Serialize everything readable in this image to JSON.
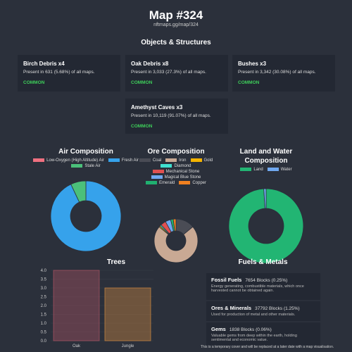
{
  "header": {
    "title": "Map #324",
    "subtitle": "nftmaps.gg/map/324"
  },
  "objects": {
    "title": "Objects & Structures",
    "items": [
      {
        "name": "Birch Debris x4",
        "presence": "Present in 631 (5.68%) of all maps.",
        "rarity": "COMMON"
      },
      {
        "name": "Oak Debris x8",
        "presence": "Present in 3,033 (27.3%) of all maps.",
        "rarity": "COMMON"
      },
      {
        "name": "Bushes x3",
        "presence": "Present in 3,342 (30.08%) of all maps.",
        "rarity": "COMMON"
      },
      {
        "name": "Amethyst Caves x3",
        "presence": "Present in 10,119 (91.07%) of all maps.",
        "rarity": "COMMON"
      }
    ]
  },
  "chart_data": [
    {
      "type": "donut",
      "title": "Air Composition",
      "categories": [
        "Low-Oxygen (High Altitude) Air",
        "Fresh Air",
        "Stale Air"
      ],
      "values": [
        0,
        93,
        7
      ],
      "colors": [
        "#f07080",
        "#36a2eb",
        "#4bc07a"
      ]
    },
    {
      "type": "donut",
      "title": "Ore Composition",
      "categories": [
        "Coal",
        "Iron",
        "Gold",
        "Diamond",
        "Mechanical Stone",
        "Magical Blue Stone",
        "Emerald",
        "Copper"
      ],
      "values": [
        14,
        72,
        1,
        1,
        4,
        4,
        2,
        2
      ],
      "colors": [
        "#4a4c55",
        "#c9a994",
        "#f5b400",
        "#40e0d0",
        "#e05050",
        "#70a8f0",
        "#20b070",
        "#f08020"
      ]
    },
    {
      "type": "donut",
      "title": "Land and Water Composition",
      "categories": [
        "Land",
        "Water"
      ],
      "values": [
        99,
        1
      ],
      "colors": [
        "#22b573",
        "#70a8f0"
      ]
    },
    {
      "type": "bar",
      "title": "Trees",
      "categories": [
        "Oak",
        "Jungle"
      ],
      "values": [
        4,
        3
      ],
      "colors": [
        "#a05060",
        "#c08040"
      ],
      "ylim": [
        0,
        4
      ],
      "yticks": [
        {
          "value": 0,
          "label": "0.0"
        },
        {
          "value": 0.5,
          "label": "0.5"
        },
        {
          "value": 1,
          "label": "1.0"
        },
        {
          "value": 1.5,
          "label": "1.5"
        },
        {
          "value": 2,
          "label": "2.0"
        },
        {
          "value": 2.5,
          "label": "2.5"
        },
        {
          "value": 3,
          "label": "3.0"
        },
        {
          "value": 3.5,
          "label": "3.5"
        },
        {
          "value": 4,
          "label": "4.0"
        }
      ]
    }
  ],
  "fuels": {
    "title": "Fuels & Metals",
    "items": [
      {
        "name": "Fossil Fuels",
        "amount": "7654 Blocks (0.25%)",
        "description": "Energy generating, combustible materials, which once harvested cannot be obtained again."
      },
      {
        "name": "Ores & Minerals",
        "amount": "37792 Blocks (1.25%)",
        "description": "Used for production of metal and other materials."
      },
      {
        "name": "Gems",
        "amount": "1838 Blocks (0.06%)",
        "description": "Valuable gems from deep within the earth, holding sentimental and economic value."
      }
    ]
  },
  "footer": "This is a temporary cover and will be replaced at a later date with a map visualisation."
}
